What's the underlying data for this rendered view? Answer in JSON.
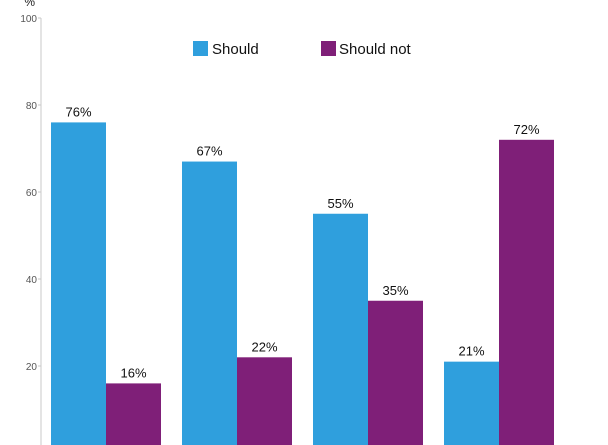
{
  "chart_data": {
    "type": "bar",
    "title": "",
    "xlabel": "",
    "ylabel": "%",
    "ylim": [
      0,
      100
    ],
    "yticks": [
      20,
      40,
      60,
      80,
      100
    ],
    "legend_position": "top-center",
    "grid": false,
    "categories": [
      "",
      "",
      "",
      ""
    ],
    "series": [
      {
        "name": "Should",
        "color": "#2f9fdd",
        "values": [
          76,
          67,
          55,
          21
        ],
        "labels": [
          "76%",
          "67%",
          "55%",
          "21%"
        ]
      },
      {
        "name": "Should not",
        "color": "#7f1f78",
        "values": [
          16,
          22,
          35,
          72
        ],
        "labels": [
          "16%",
          "22%",
          "35%",
          "72%"
        ]
      }
    ]
  }
}
